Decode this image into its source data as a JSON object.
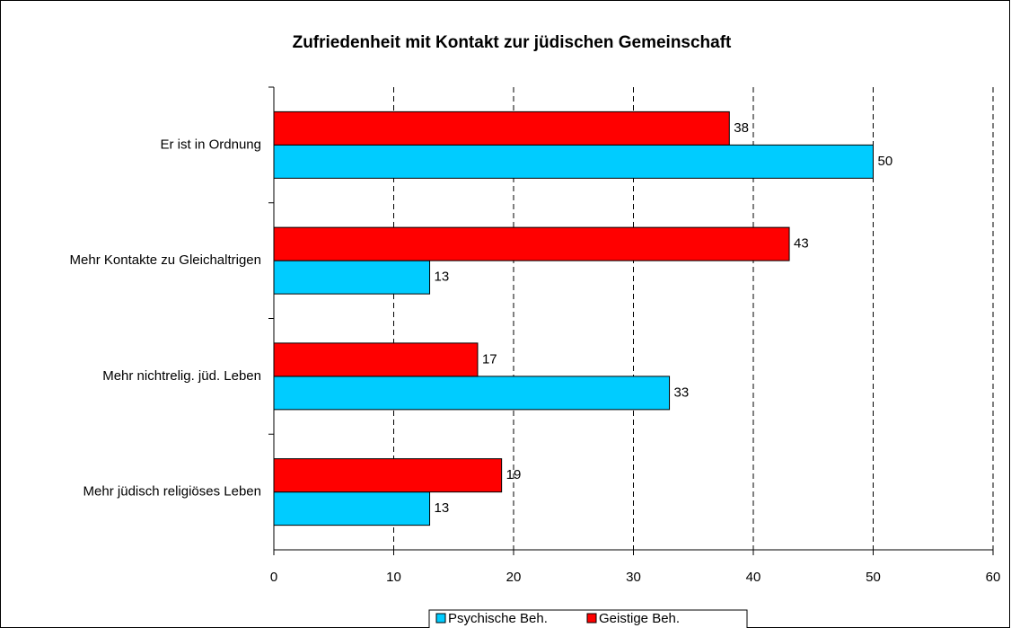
{
  "chart_data": {
    "type": "barh",
    "title": "Zufriedenheit mit Kontakt zur jüdischen Gemeinschaft",
    "categories": [
      "Er ist in Ordnung",
      "Mehr Kontakte zu Gleichaltrigen",
      "Mehr nichtrelig. jüd. Leben",
      "Mehr jüdisch religiöses Leben"
    ],
    "series": [
      {
        "name": "Psychische Beh.",
        "color": "#00ccff",
        "values": [
          50,
          13,
          33,
          13
        ]
      },
      {
        "name": "Geistige Beh.",
        "color": "#ff0000",
        "values": [
          38,
          43,
          17,
          19
        ]
      }
    ],
    "xlim": [
      0,
      60
    ],
    "xticks": [
      0,
      10,
      20,
      30,
      40,
      50,
      60
    ],
    "grid": true,
    "legend": "bottom"
  }
}
